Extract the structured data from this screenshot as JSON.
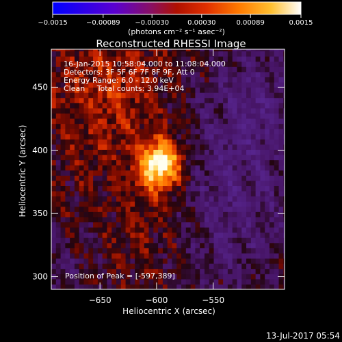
{
  "chart_data": {
    "type": "heatmap",
    "title": "Reconstructed RHESSI Image",
    "xlabel": "Heliocentric X (arcsec)",
    "ylabel": "Heliocentric Y (arcsec)",
    "xlim": [
      -693,
      -487
    ],
    "ylim": [
      290,
      480
    ],
    "x_ticks": [
      {
        "value": -650,
        "label": "−650"
      },
      {
        "value": -600,
        "label": "−600"
      },
      {
        "value": -550,
        "label": "−550"
      }
    ],
    "y_ticks": [
      {
        "value": 300,
        "label": "300"
      },
      {
        "value": 350,
        "label": "350"
      },
      {
        "value": 400,
        "label": "400"
      },
      {
        "value": 450,
        "label": "450"
      }
    ],
    "colorbar": {
      "min": -0.0015,
      "max": 0.0015,
      "label": "(photons cm⁻² s⁻¹ asec⁻²)",
      "ticks": [
        {
          "value": -0.0015,
          "label": "−0.0015"
        },
        {
          "value": -0.00089,
          "label": "−0.00089"
        },
        {
          "value": -0.0003,
          "label": "−0.00030"
        },
        {
          "value": 0.0003,
          "label": "0.00030"
        },
        {
          "value": 0.00089,
          "label": "0.00089"
        },
        {
          "value": 0.0015,
          "label": "0.0015"
        }
      ]
    },
    "annotations": [
      "16-Jan-2015 10:58:04.000 to 11:08:04.000",
      "Detectors: 3F 5F 6F 7F 8F 9F, Att 0",
      "Energy Range: 6.0 - 12.0 keV",
      "Clean     Total counts: 3.94E+04"
    ],
    "peak_label": "Position of Peak = [-597,389]",
    "peak": {
      "x": -597,
      "y": 389
    },
    "timestamp": "13-Jul-2017 05:54"
  }
}
